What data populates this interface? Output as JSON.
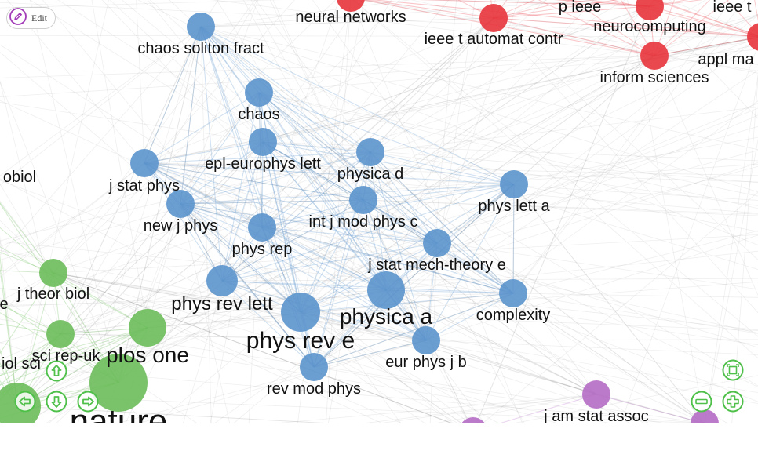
{
  "toolbar": {
    "edit_label": "Edit"
  },
  "controls": {
    "pan_up": "arrow-up-icon",
    "pan_left": "arrow-left-icon",
    "pan_down": "arrow-down-icon",
    "pan_right": "arrow-right-icon",
    "fit": "fit-to-screen-icon",
    "zoom_out": "zoom-out-icon",
    "zoom_in": "zoom-in-icon"
  },
  "colors": {
    "cluster_physics": "#5b93cc",
    "cluster_computing": "#e8343c",
    "cluster_biology": "#6cbd5a",
    "cluster_statistics": "#b56cc4",
    "controls": "#4fc04a",
    "edit_icon": "#a33cb8"
  },
  "chart_data": {
    "type": "network",
    "clusters": [
      {
        "id": "physics",
        "color": "#5b93cc"
      },
      {
        "id": "computing",
        "color": "#e8343c"
      },
      {
        "id": "biology",
        "color": "#6cbd5a"
      },
      {
        "id": "statistics",
        "color": "#b56cc4"
      }
    ],
    "nodes": [
      {
        "id": "chaos-soliton-fract",
        "label": "chaos soliton fract",
        "cluster": "physics",
        "weight": 2
      },
      {
        "id": "chaos",
        "label": "chaos",
        "cluster": "physics",
        "weight": 2
      },
      {
        "id": "epl-europhys-lett",
        "label": "epl-europhys lett",
        "cluster": "physics",
        "weight": 2
      },
      {
        "id": "j-stat-phys",
        "label": "j stat phys",
        "cluster": "physics",
        "weight": 2
      },
      {
        "id": "physica-d",
        "label": "physica d",
        "cluster": "physics",
        "weight": 2
      },
      {
        "id": "phys-lett-a",
        "label": "phys lett a",
        "cluster": "physics",
        "weight": 2
      },
      {
        "id": "new-j-phys",
        "label": "new j phys",
        "cluster": "physics",
        "weight": 2
      },
      {
        "id": "int-j-mod-phys-c",
        "label": "int j mod phys c",
        "cluster": "physics",
        "weight": 2
      },
      {
        "id": "phys-rep",
        "label": "phys rep",
        "cluster": "physics",
        "weight": 2
      },
      {
        "id": "j-stat-mech",
        "label": "j stat mech-theory e",
        "cluster": "physics",
        "weight": 2
      },
      {
        "id": "phys-rev-lett",
        "label": "phys rev lett",
        "cluster": "physics",
        "weight": 3
      },
      {
        "id": "physica-a",
        "label": "physica a",
        "cluster": "physics",
        "weight": 4
      },
      {
        "id": "complexity",
        "label": "complexity",
        "cluster": "physics",
        "weight": 2
      },
      {
        "id": "phys-rev-e",
        "label": "phys rev e",
        "cluster": "physics",
        "weight": 5
      },
      {
        "id": "eur-phys-j-b",
        "label": "eur phys j b",
        "cluster": "physics",
        "weight": 2
      },
      {
        "id": "rev-mod-phys",
        "label": "rev mod phys",
        "cluster": "physics",
        "weight": 2
      },
      {
        "id": "neural-networks",
        "label": "neural networks",
        "cluster": "computing",
        "weight": 2
      },
      {
        "id": "p-ieee",
        "label": "p ieee",
        "cluster": "computing",
        "weight": 2
      },
      {
        "id": "ieee-t",
        "label": "ieee t",
        "cluster": "computing",
        "weight": 2
      },
      {
        "id": "ieee-t-automat-contr",
        "label": "ieee t automat contr",
        "cluster": "computing",
        "weight": 2
      },
      {
        "id": "neurocomputing",
        "label": "neurocomputing",
        "cluster": "computing",
        "weight": 2
      },
      {
        "id": "appl-ma",
        "label": "appl ma",
        "cluster": "computing",
        "weight": 2
      },
      {
        "id": "inform-sciences",
        "label": "inform sciences",
        "cluster": "computing",
        "weight": 2
      },
      {
        "id": "obiol",
        "label": "obiol",
        "cluster": "biology",
        "weight": 1
      },
      {
        "id": "j-theor-biol",
        "label": "j theor biol",
        "cluster": "biology",
        "weight": 2
      },
      {
        "id": "e-cut",
        "label": "e",
        "cluster": "biology",
        "weight": 1
      },
      {
        "id": "sci-rep-uk",
        "label": "sci rep-uk",
        "cluster": "biology",
        "weight": 2
      },
      {
        "id": "plos-one",
        "label": "plos one",
        "cluster": "biology",
        "weight": 3
      },
      {
        "id": "iol-sci",
        "label": "iol sci",
        "cluster": "biology",
        "weight": 1
      },
      {
        "id": "nature",
        "label": "nature",
        "cluster": "biology",
        "weight": 5
      },
      {
        "id": "j-am-stat-assoc",
        "label": "j am stat assoc",
        "cluster": "statistics",
        "weight": 2
      }
    ]
  }
}
